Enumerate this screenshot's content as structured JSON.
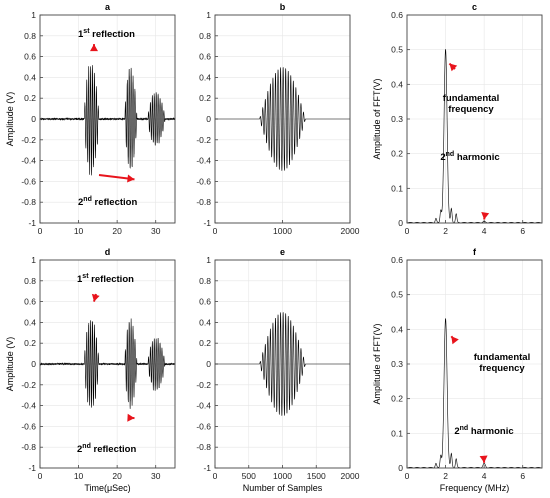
{
  "chart_data": [
    {
      "id": "a",
      "type": "line",
      "panel_label": "a",
      "ylabel": "Amplitude (V)",
      "xlabel": "",
      "xlim": [
        0,
        35
      ],
      "ylim": [
        -1,
        1
      ],
      "xticks": [
        "0",
        "10",
        "20",
        "30"
      ],
      "yticks": [
        "-1",
        "-0.8",
        "-0.6",
        "-0.4",
        "-0.2",
        "0",
        "0.2",
        "0.4",
        "0.6",
        "0.8",
        "1"
      ],
      "signal": {
        "kind": "echo",
        "bursts": [
          {
            "start": 11.5,
            "end": 17.5,
            "amp": 0.62
          },
          {
            "start": 22,
            "end": 27,
            "amp": 0.58
          },
          {
            "start": 28,
            "end": 35,
            "amp": 0.3
          }
        ]
      },
      "annotations": [
        {
          "text_main": "1",
          "text_sup": "st",
          "text_rest": " reflection",
          "arrow_to": [
            14,
            0.72
          ]
        },
        {
          "text_main": "2",
          "text_sup": "nd",
          "text_rest": " reflection",
          "arrow_to": [
            24.5,
            -0.58
          ]
        }
      ]
    },
    {
      "id": "b",
      "type": "line",
      "panel_label": "b",
      "ylabel": "",
      "xlabel": "",
      "xlim": [
        0,
        2000
      ],
      "ylim": [
        -1,
        1
      ],
      "xticks": [
        "0",
        "1000",
        "2000"
      ],
      "yticks": [
        "-1",
        "-0.8",
        "-0.6",
        "-0.4",
        "-0.2",
        "0",
        "0.2",
        "0.4",
        "0.6",
        "0.8",
        "1"
      ],
      "signal": {
        "kind": "packet",
        "center": 1000,
        "width": 340,
        "amp": 0.5,
        "cycles": 18
      },
      "annotations": []
    },
    {
      "id": "c",
      "type": "line",
      "panel_label": "c",
      "ylabel": "Amplitude of FFT(V)",
      "xlabel": "",
      "xlim": [
        0,
        7
      ],
      "ylim": [
        0,
        0.6
      ],
      "xticks": [
        "0",
        "2",
        "4",
        "6"
      ],
      "yticks": [
        "0",
        "0.1",
        "0.2",
        "0.3",
        "0.4",
        "0.5",
        "0.6"
      ],
      "signal": {
        "kind": "spectrum",
        "peak_x": 2,
        "peak_y": 0.5,
        "harmonic_x": 4,
        "harmonic_y": 0.003
      },
      "annotations": [
        {
          "text_main": "fundamental",
          "text_line2": "frequency",
          "arrow_to": [
            2.2,
            0.46
          ]
        },
        {
          "text_main": "2",
          "text_sup": "nd",
          "text_rest": " harmonic",
          "arrow_to": [
            4,
            0.01
          ]
        }
      ]
    },
    {
      "id": "d",
      "type": "line",
      "panel_label": "d",
      "ylabel": "Amplitude (V)",
      "xlabel": "Time(μSec)",
      "xlim": [
        0,
        35
      ],
      "ylim": [
        -1,
        1
      ],
      "xticks": [
        "0",
        "10",
        "20",
        "30"
      ],
      "yticks": [
        "-1",
        "-0.8",
        "-0.6",
        "-0.4",
        "-0.2",
        "0",
        "0.2",
        "0.4",
        "0.6",
        "0.8",
        "1"
      ],
      "signal": {
        "kind": "echo",
        "bursts": [
          {
            "start": 11.5,
            "end": 17.5,
            "amp": 0.52
          },
          {
            "start": 22,
            "end": 27,
            "amp": 0.5
          },
          {
            "start": 28,
            "end": 35,
            "amp": 0.3
          }
        ]
      },
      "annotations": [
        {
          "text_main": "1",
          "text_sup": "st",
          "text_rest": " reflection",
          "arrow_to": [
            14,
            0.6
          ]
        },
        {
          "text_main": "2",
          "text_sup": "nd",
          "text_rest": " reflection",
          "arrow_to": [
            24.5,
            -0.52
          ]
        }
      ]
    },
    {
      "id": "e",
      "type": "line",
      "panel_label": "e",
      "ylabel": "",
      "xlabel": "Number of Samples",
      "xlim": [
        0,
        2000
      ],
      "ylim": [
        -1,
        1
      ],
      "xticks": [
        "0",
        "500",
        "1000",
        "1500",
        "2000"
      ],
      "yticks": [
        "-1",
        "-0.8",
        "-0.6",
        "-0.4",
        "-0.2",
        "0",
        "0.2",
        "0.4",
        "0.6",
        "0.8",
        "1"
      ],
      "signal": {
        "kind": "packet",
        "center": 1000,
        "width": 340,
        "amp": 0.5,
        "cycles": 18
      },
      "annotations": []
    },
    {
      "id": "f",
      "type": "line",
      "panel_label": "f",
      "ylabel": "Amplitude of FFT(V)",
      "xlabel": "Frequency (MHz)",
      "xlim": [
        0,
        7
      ],
      "ylim": [
        0,
        0.6
      ],
      "xticks": [
        "0",
        "2",
        "4",
        "6"
      ],
      "yticks": [
        "0",
        "0.1",
        "0.2",
        "0.3",
        "0.4",
        "0.5",
        "0.6"
      ],
      "signal": {
        "kind": "spectrum",
        "peak_x": 2,
        "peak_y": 0.43,
        "harmonic_x": 4,
        "harmonic_y": 0.012
      },
      "annotations": [
        {
          "text_main": "fundamental",
          "text_line2": "frequency",
          "arrow_to": [
            2.3,
            0.38
          ]
        },
        {
          "text_main": "2",
          "text_sup": "nd",
          "text_rest": " harmonic",
          "arrow_to": [
            4,
            0.015
          ]
        }
      ]
    }
  ],
  "colors": {
    "trace": "#000000",
    "arrow": "#e8141c",
    "axis": "#444444",
    "grid": "#e6e6e6"
  }
}
